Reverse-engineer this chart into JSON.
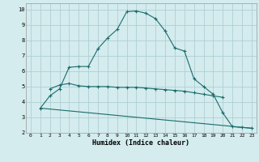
{
  "xlabel": "Humidex (Indice chaleur)",
  "background_color": "#d4ecee",
  "grid_color": "#aecfd4",
  "line_color": "#1a6b6b",
  "xlim": [
    -0.5,
    23.5
  ],
  "ylim": [
    2,
    10.4
  ],
  "yticks": [
    2,
    3,
    4,
    5,
    6,
    7,
    8,
    9,
    10
  ],
  "xticks": [
    0,
    1,
    2,
    3,
    4,
    5,
    6,
    7,
    8,
    9,
    10,
    11,
    12,
    13,
    14,
    15,
    16,
    17,
    18,
    19,
    20,
    21,
    22,
    23
  ],
  "series1_x": [
    1,
    2,
    3,
    4,
    5,
    6,
    7,
    8,
    9,
    10,
    11,
    12,
    13,
    14,
    15,
    16,
    17,
    18,
    19,
    20,
    21,
    22,
    23
  ],
  "series1_y": [
    3.6,
    4.4,
    4.85,
    6.25,
    6.3,
    6.3,
    7.45,
    8.15,
    8.7,
    9.85,
    9.9,
    9.75,
    9.4,
    8.6,
    7.5,
    7.3,
    5.5,
    5.0,
    4.5,
    3.3,
    2.4,
    2.35,
    2.3
  ],
  "series2_x": [
    2,
    3,
    4,
    5,
    6,
    7,
    8,
    9,
    10,
    11,
    12,
    13,
    14,
    15,
    16,
    17,
    18,
    19,
    20
  ],
  "series2_y": [
    4.85,
    5.1,
    5.2,
    5.05,
    5.0,
    5.0,
    5.0,
    4.95,
    4.95,
    4.95,
    4.9,
    4.85,
    4.8,
    4.75,
    4.7,
    4.6,
    4.5,
    4.4,
    4.3
  ],
  "series3_x": [
    1,
    23
  ],
  "series3_y": [
    3.6,
    2.3
  ]
}
